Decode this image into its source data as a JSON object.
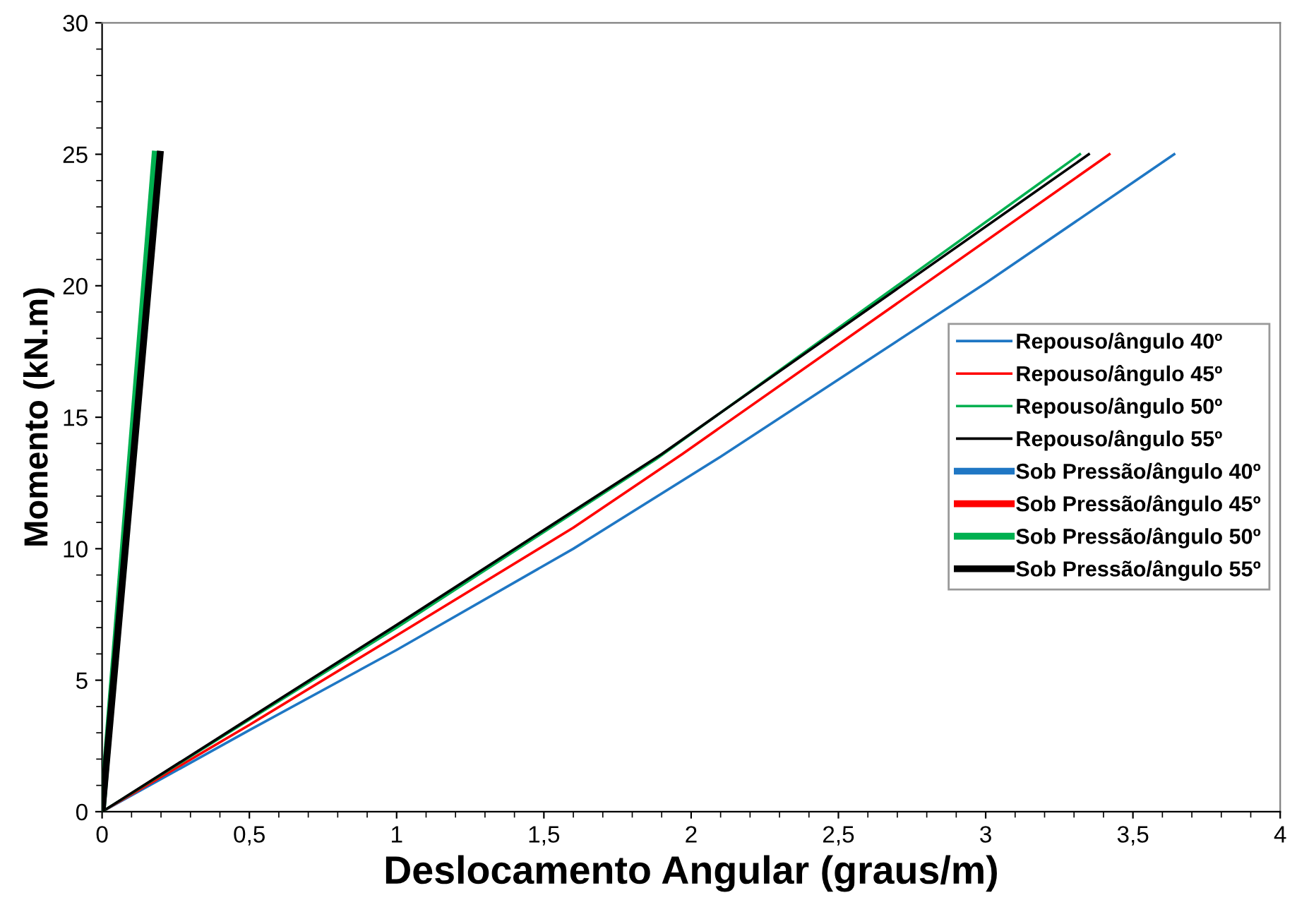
{
  "chart_data": {
    "type": "line",
    "xlabel": "Deslocamento Angular (graus/m)",
    "ylabel": "Momento (kN.m)",
    "xlim": [
      0,
      4
    ],
    "ylim": [
      0,
      30
    ],
    "xticks": [
      0,
      {
        "value": 0.5,
        "label": "0,5"
      },
      1,
      {
        "value": 1.5,
        "label": "1,5"
      },
      2,
      {
        "value": 2.5,
        "label": "2,5"
      },
      3,
      {
        "value": 3.5,
        "label": "3,5"
      },
      4
    ],
    "yticks": [
      0,
      5,
      10,
      15,
      20,
      25,
      30
    ],
    "grid": false,
    "legend": "right",
    "marker": "none",
    "line_style": "solid",
    "series": [
      {
        "name": "Repouso/ângulo 40º",
        "color": "#1f77c4",
        "x": [
          0,
          0.5,
          1,
          1.6,
          2.1,
          3.0,
          3.64
        ],
        "values": [
          0,
          3.1,
          6.15,
          10.0,
          13.5,
          20.1,
          25
        ]
      },
      {
        "name": "Repouso/ângulo 45º",
        "color": "#ff0000",
        "x": [
          0,
          0.5,
          1,
          1.6,
          1.97,
          3.42
        ],
        "values": [
          0,
          3.3,
          6.7,
          10.8,
          13.6,
          25
        ]
      },
      {
        "name": "Repouso/ângulo 50º",
        "color": "#00b050",
        "x": [
          0,
          0.5,
          1,
          1.88,
          3.32
        ],
        "values": [
          0,
          3.5,
          7.0,
          13.4,
          25
        ]
      },
      {
        "name": "Repouso/ângulo 55º",
        "color": "#000000",
        "x": [
          0,
          0.5,
          1,
          1.9,
          3.35
        ],
        "values": [
          0,
          3.55,
          7.1,
          13.6,
          25
        ]
      },
      {
        "name": "Sob Pressão/ângulo 40º",
        "color": "#1f77c4"
      },
      {
        "name": "Sob Pressão/ângulo 45º",
        "color": "#ff0000"
      },
      {
        "name": "Sob Pressão/ângulo 50º",
        "color": "#00b050",
        "x": [
          0,
          0.18
        ],
        "values": [
          0,
          25
        ]
      },
      {
        "name": "Sob Pressão/ângulo 55º",
        "color": "#000000",
        "x": [
          0,
          0.197
        ],
        "values": [
          0,
          25
        ]
      }
    ]
  }
}
